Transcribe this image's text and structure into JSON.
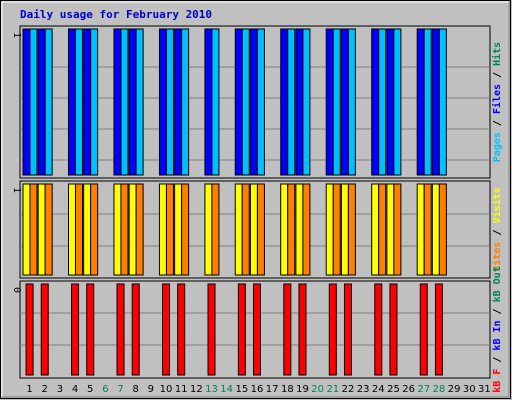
{
  "chart_data": {
    "type": "bar",
    "title": "Daily usage for February 2010",
    "colors": {
      "title": "#0000cc",
      "background": "#c0c0c0",
      "hits": "#00805c",
      "files": "#0000ff",
      "pages": "#00c0ff",
      "visits": "#ffff00",
      "sites": "#ff8000",
      "kb_in": "#0000ff",
      "kb_out": "#00805c",
      "kbf": "#ff0000",
      "weekend_day": "#00805c",
      "weekday": "#000000"
    },
    "days": [
      "1",
      "2",
      "3",
      "4",
      "5",
      "6",
      "7",
      "8",
      "9",
      "10",
      "11",
      "12",
      "13",
      "14",
      "15",
      "16",
      "17",
      "18",
      "19",
      "20",
      "21",
      "22",
      "23",
      "24",
      "25",
      "26",
      "27",
      "28",
      "29",
      "30",
      "31"
    ],
    "weekend_days": [
      "6",
      "7",
      "13",
      "14",
      "20",
      "21",
      "27",
      "28"
    ],
    "panels": [
      {
        "id": "top",
        "axis_label": "1",
        "series_label": [
          {
            "text": "Pages",
            "color": "#00c0ff"
          },
          {
            "text": " / ",
            "color": "#000000"
          },
          {
            "text": "Files",
            "color": "#0000ff"
          },
          {
            "text": " / ",
            "color": "#000000"
          },
          {
            "text": "Hits",
            "color": "#00805c"
          }
        ],
        "series": [
          {
            "name": "Files",
            "color": "#0000ff",
            "values": [
              1,
              1,
              0,
              1,
              1,
              0,
              1,
              1,
              0,
              1,
              1,
              0,
              1,
              0,
              1,
              1,
              0,
              1,
              1,
              0,
              1,
              1,
              0,
              1,
              1,
              0,
              1,
              1,
              0,
              0,
              0
            ]
          },
          {
            "name": "Pages",
            "color": "#00c0ff",
            "values": [
              1,
              1,
              0,
              1,
              1,
              0,
              1,
              1,
              0,
              1,
              1,
              0,
              1,
              0,
              1,
              1,
              0,
              1,
              1,
              0,
              1,
              1,
              0,
              1,
              1,
              0,
              1,
              1,
              0,
              0,
              0
            ]
          }
        ],
        "ymax": 1
      },
      {
        "id": "middle",
        "axis_label": "1",
        "series_label": [
          {
            "text": "Sites",
            "color": "#ff8000"
          },
          {
            "text": " / ",
            "color": "#000000"
          },
          {
            "text": "Visits",
            "color": "#ffff00"
          }
        ],
        "series": [
          {
            "name": "Visits",
            "color": "#ffff00",
            "values": [
              1,
              1,
              0,
              1,
              1,
              0,
              1,
              1,
              0,
              1,
              1,
              0,
              1,
              0,
              1,
              1,
              0,
              1,
              1,
              0,
              1,
              1,
              0,
              1,
              1,
              0,
              1,
              1,
              0,
              0,
              0
            ]
          },
          {
            "name": "Sites",
            "color": "#ff8000",
            "values": [
              1,
              1,
              0,
              1,
              1,
              0,
              1,
              1,
              0,
              1,
              1,
              0,
              1,
              0,
              1,
              1,
              0,
              1,
              1,
              0,
              1,
              1,
              0,
              1,
              1,
              0,
              1,
              1,
              0,
              0,
              0
            ]
          }
        ],
        "ymax": 1
      },
      {
        "id": "bottom",
        "axis_label": "0",
        "series_label": [
          {
            "text": "kB F",
            "color": "#ff0000"
          },
          {
            "text": " / ",
            "color": "#000000"
          },
          {
            "text": "kB In",
            "color": "#0000ff"
          },
          {
            "text": " / ",
            "color": "#000000"
          },
          {
            "text": "kB Out",
            "color": "#00805c"
          }
        ],
        "series": [
          {
            "name": "kB F",
            "color": "#ff0000",
            "values": [
              1,
              1,
              0,
              1,
              1,
              0,
              1,
              1,
              0,
              1,
              1,
              0,
              1,
              0,
              1,
              1,
              0,
              1,
              1,
              0,
              1,
              1,
              0,
              1,
              1,
              0,
              1,
              1,
              0,
              0,
              0
            ]
          }
        ],
        "ymax": 1
      }
    ]
  }
}
